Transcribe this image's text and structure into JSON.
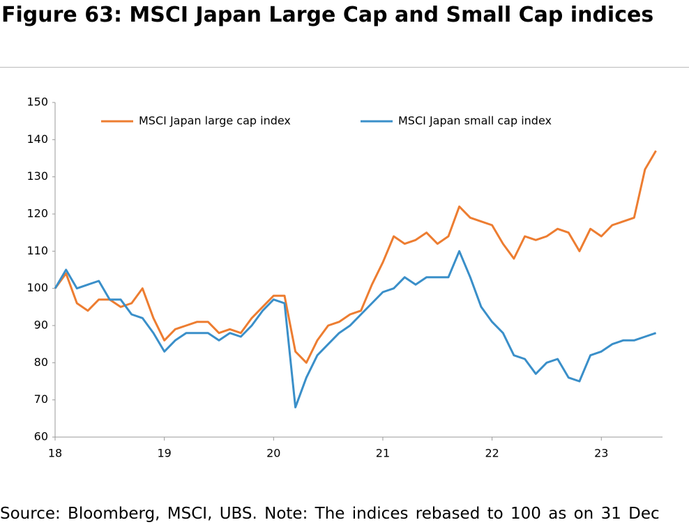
{
  "chart_data": {
    "type": "line",
    "title": "Figure 63: MSCI Japan Large Cap and Small Cap indices",
    "footnote": "Source: Bloomberg, MSCI, UBS. Note: The indices rebased to 100 as on 31 Dec",
    "x": [
      18,
      18.1,
      18.2,
      18.3,
      18.4,
      18.5,
      18.6,
      18.7,
      18.8,
      18.9,
      19,
      19.1,
      19.2,
      19.3,
      19.4,
      19.5,
      19.6,
      19.7,
      19.8,
      19.9,
      20,
      20.1,
      20.2,
      20.3,
      20.4,
      20.5,
      20.6,
      20.7,
      20.8,
      20.9,
      21,
      21.1,
      21.2,
      21.3,
      21.4,
      21.5,
      21.6,
      21.7,
      21.8,
      21.9,
      22,
      22.1,
      22.2,
      22.3,
      22.4,
      22.5,
      22.6,
      22.7,
      22.8,
      22.9,
      23,
      23.1,
      23.2,
      23.3,
      23.4,
      23.5
    ],
    "series": [
      {
        "name": "MSCI Japan large cap index",
        "color": "#ed7d31",
        "values": [
          100,
          104,
          96,
          94,
          97,
          97,
          95,
          96,
          100,
          92,
          86,
          89,
          90,
          91,
          91,
          88,
          89,
          88,
          92,
          95,
          98,
          98,
          83,
          80,
          86,
          90,
          91,
          93,
          94,
          101,
          107,
          114,
          112,
          113,
          115,
          112,
          114,
          122,
          119,
          118,
          117,
          112,
          108,
          114,
          113,
          114,
          116,
          115,
          110,
          116,
          114,
          117,
          118,
          119,
          132,
          137
        ]
      },
      {
        "name": "MSCI Japan small cap index",
        "color": "#3a8fc9",
        "values": [
          100,
          105,
          100,
          101,
          102,
          97,
          97,
          93,
          92,
          88,
          83,
          86,
          88,
          88,
          88,
          86,
          88,
          87,
          90,
          94,
          97,
          96,
          68,
          76,
          82,
          85,
          88,
          90,
          93,
          96,
          99,
          100,
          103,
          101,
          103,
          103,
          103,
          110,
          103,
          95,
          91,
          88,
          82,
          81,
          77,
          80,
          81,
          76,
          75,
          82,
          83,
          85,
          86,
          86,
          87,
          88
        ]
      }
    ],
    "xlim": [
      18,
      23.56
    ],
    "xticks": [
      18,
      19,
      20,
      21,
      22,
      23
    ],
    "ylim": [
      60,
      150
    ],
    "yticks": [
      60,
      70,
      80,
      90,
      100,
      110,
      120,
      130,
      140,
      150
    ],
    "legend": "top"
  }
}
